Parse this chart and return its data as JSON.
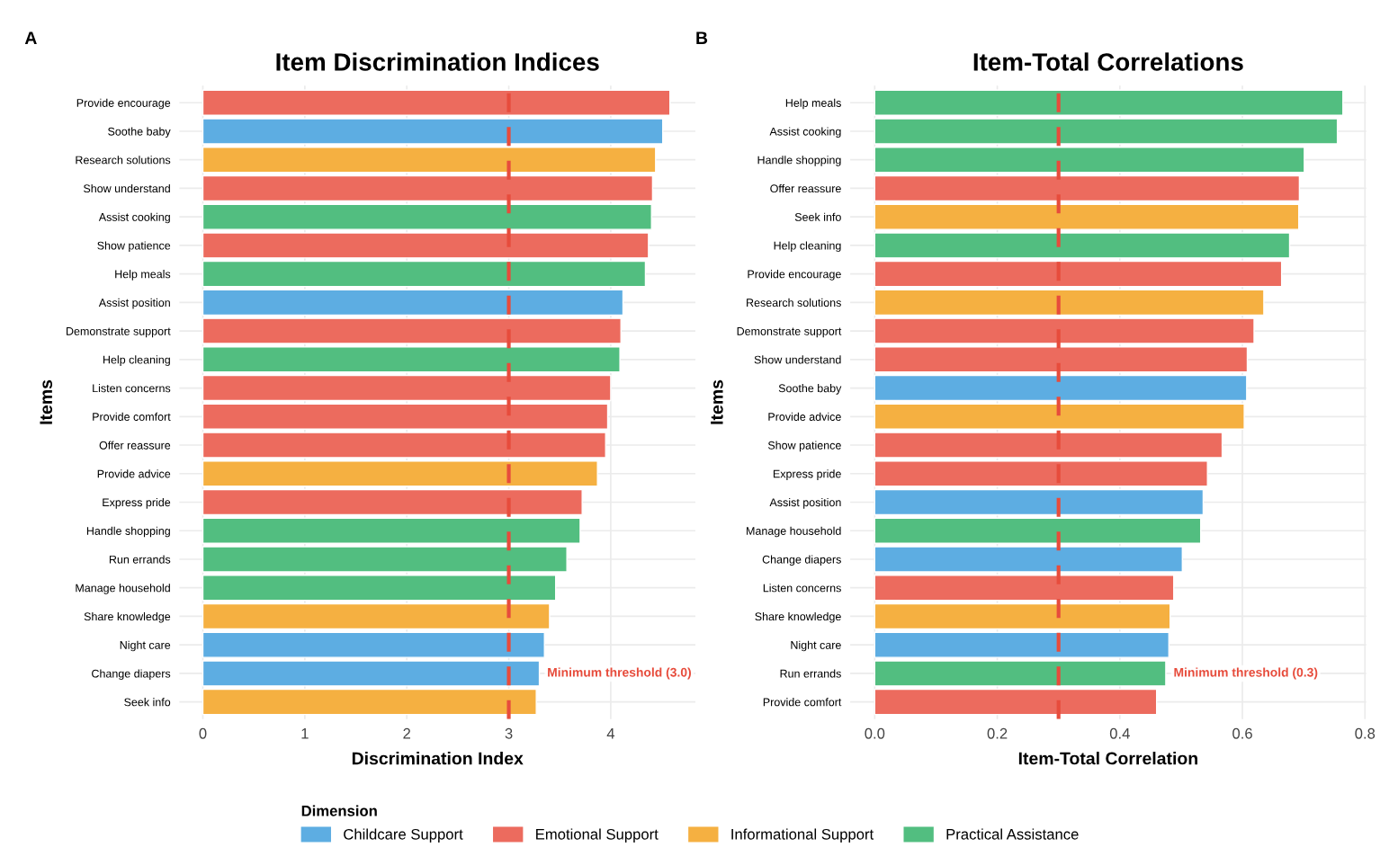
{
  "chart_data": [
    {
      "type": "bar",
      "orientation": "horizontal",
      "title": "Item Discrimination Indices",
      "xlabel": "Discrimination Index",
      "ylabel": "Items",
      "annotations": [
        "A"
      ],
      "categories": [
        "Provide encourage",
        "Soothe baby",
        "Research solutions",
        "Show understand",
        "Assist cooking",
        "Show patience",
        "Help meals",
        "Assist position",
        "Demonstrate support",
        "Help cleaning",
        "Listen concerns",
        "Provide comfort",
        "Offer reassure",
        "Provide advice",
        "Express pride",
        "Handle shopping",
        "Run errands",
        "Manage household",
        "Share knowledge",
        "Night care",
        "Change diapers",
        "Seek info"
      ],
      "series": [
        {
          "color": "#5dade2",
          "values": [
            null,
            4.51,
            null,
            null,
            null,
            null,
            null,
            4.12,
            null,
            null,
            null,
            null,
            null,
            null,
            null,
            null,
            null,
            null,
            null,
            3.35,
            3.3,
            null
          ]
        },
        {
          "color": "#ec6b5e",
          "values": [
            4.58,
            null,
            null,
            4.41,
            null,
            4.37,
            null,
            null,
            4.1,
            null,
            4.0,
            3.97,
            3.95,
            null,
            3.72,
            null,
            null,
            null,
            null,
            null,
            null,
            null
          ]
        },
        {
          "color": "#f5b041",
          "values": [
            null,
            null,
            4.44,
            null,
            null,
            null,
            null,
            null,
            null,
            null,
            null,
            null,
            null,
            3.87,
            null,
            null,
            null,
            null,
            3.4,
            null,
            null,
            3.27
          ]
        },
        {
          "color": "#52be80",
          "values": [
            null,
            null,
            null,
            null,
            4.4,
            null,
            4.34,
            null,
            null,
            4.09,
            null,
            null,
            null,
            null,
            null,
            3.7,
            3.57,
            3.46,
            null,
            null,
            null,
            null
          ]
        }
      ],
      "xlim": [
        -0.23,
        4.83
      ],
      "xticks": [
        0,
        1,
        2,
        3,
        4
      ],
      "grid": true,
      "ref_lines": [
        {
          "axis": "x",
          "value": 3.0,
          "label": "Minimum threshold (3.0)",
          "color": "#e74c3c",
          "line_style": "dashed"
        }
      ]
    },
    {
      "type": "bar",
      "orientation": "horizontal",
      "title": "Item-Total Correlations",
      "xlabel": "Item-Total Correlation",
      "ylabel": "Items",
      "annotations": [
        "B"
      ],
      "legend": "bottom",
      "legend_title": "Dimension",
      "categories": [
        "Help meals",
        "Assist cooking",
        "Handle shopping",
        "Offer reassure",
        "Seek info",
        "Help cleaning",
        "Provide encourage",
        "Research solutions",
        "Demonstrate support",
        "Show understand",
        "Soothe baby",
        "Provide advice",
        "Show patience",
        "Express pride",
        "Assist position",
        "Manage household",
        "Change diapers",
        "Listen concerns",
        "Share knowledge",
        "Night care",
        "Run errands",
        "Provide comfort"
      ],
      "series": [
        {
          "name": "Childcare Support",
          "color": "#5dade2",
          "values": [
            null,
            null,
            null,
            null,
            null,
            null,
            null,
            null,
            null,
            null,
            0.607,
            null,
            null,
            null,
            0.536,
            null,
            0.502,
            null,
            null,
            0.48,
            null,
            null
          ]
        },
        {
          "name": "Emotional Support",
          "color": "#ec6b5e",
          "values": [
            null,
            null,
            null,
            0.693,
            null,
            null,
            0.664,
            null,
            0.619,
            0.608,
            null,
            null,
            0.567,
            0.543,
            null,
            null,
            null,
            0.488,
            null,
            null,
            null,
            0.46
          ]
        },
        {
          "name": "Informational Support",
          "color": "#f5b041",
          "values": [
            null,
            null,
            null,
            null,
            0.692,
            null,
            null,
            0.635,
            null,
            null,
            null,
            0.603,
            null,
            null,
            null,
            null,
            null,
            null,
            0.482,
            null,
            null,
            null
          ]
        },
        {
          "name": "Practical Assistance",
          "color": "#52be80",
          "values": [
            0.764,
            0.755,
            0.701,
            null,
            null,
            0.677,
            null,
            null,
            null,
            null,
            null,
            null,
            null,
            null,
            null,
            0.532,
            null,
            null,
            null,
            null,
            0.475,
            null
          ]
        }
      ],
      "xlim": [
        -0.04,
        0.802
      ],
      "xticks": [
        {
          "value": 0,
          "label": "0.0"
        },
        0.2,
        0.4,
        0.6,
        0.8
      ],
      "grid": true,
      "ref_lines": [
        {
          "axis": "x",
          "value": 0.3,
          "label": "Minimum threshold (0.3)",
          "color": "#e74c3c",
          "line_style": "dashed"
        }
      ]
    }
  ]
}
